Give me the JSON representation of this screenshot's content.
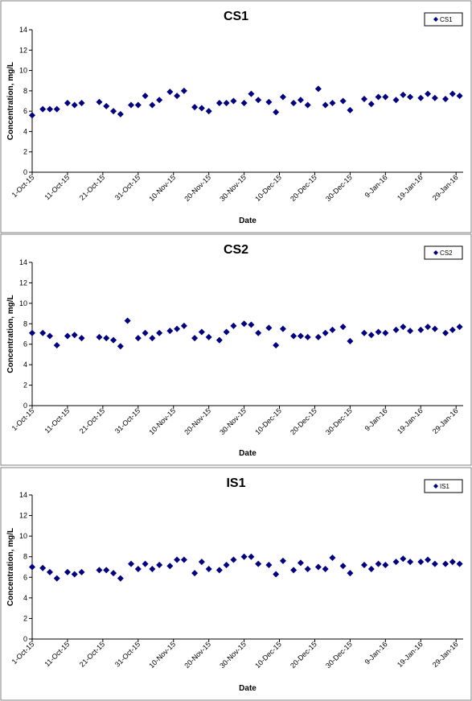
{
  "chart_data": [
    {
      "type": "scatter",
      "title": "CS1",
      "xlabel": "Date",
      "ylabel": "Concentration, mg/L",
      "ylim": [
        0,
        14
      ],
      "yticks": [
        "0",
        "2",
        "4",
        "6",
        "8",
        "10",
        "12",
        "14"
      ],
      "xlim": [
        "2015-10-01",
        "2016-01-31"
      ],
      "xticks": [
        {
          "date": "2015-10-01",
          "label": "1-Oct-15"
        },
        {
          "date": "2015-10-11",
          "label": "11-Oct-15"
        },
        {
          "date": "2015-10-21",
          "label": "21-Oct-15"
        },
        {
          "date": "2015-10-31",
          "label": "31-Oct-15"
        },
        {
          "date": "2015-11-10",
          "label": "10-Nov-15"
        },
        {
          "date": "2015-11-20",
          "label": "20-Nov-15"
        },
        {
          "date": "2015-11-30",
          "label": "30-Nov-15"
        },
        {
          "date": "2015-12-10",
          "label": "10-Dec-15"
        },
        {
          "date": "2015-12-20",
          "label": "20-Dec-15"
        },
        {
          "date": "2015-12-30",
          "label": "30-Dec-15"
        },
        {
          "date": "2016-01-09",
          "label": "9-Jan-16"
        },
        {
          "date": "2016-01-19",
          "label": "19-Jan-16"
        },
        {
          "date": "2016-01-29",
          "label": "29-Jan-16"
        }
      ],
      "grid": "none",
      "legend_position": "top-right",
      "marker_color": "#000080",
      "series": [
        {
          "name": "CS1",
          "points": [
            {
              "x": "2015-10-01",
              "y": 5.6
            },
            {
              "x": "2015-10-04",
              "y": 6.2
            },
            {
              "x": "2015-10-06",
              "y": 6.2
            },
            {
              "x": "2015-10-08",
              "y": 6.2
            },
            {
              "x": "2015-10-11",
              "y": 6.8
            },
            {
              "x": "2015-10-13",
              "y": 6.6
            },
            {
              "x": "2015-10-15",
              "y": 6.8
            },
            {
              "x": "2015-10-20",
              "y": 6.9
            },
            {
              "x": "2015-10-22",
              "y": 6.5
            },
            {
              "x": "2015-10-24",
              "y": 6.0
            },
            {
              "x": "2015-10-26",
              "y": 5.7
            },
            {
              "x": "2015-10-29",
              "y": 6.6
            },
            {
              "x": "2015-10-31",
              "y": 6.6
            },
            {
              "x": "2015-11-02",
              "y": 7.5
            },
            {
              "x": "2015-11-04",
              "y": 6.6
            },
            {
              "x": "2015-11-06",
              "y": 7.1
            },
            {
              "x": "2015-11-09",
              "y": 7.9
            },
            {
              "x": "2015-11-11",
              "y": 7.5
            },
            {
              "x": "2015-11-13",
              "y": 8.0
            },
            {
              "x": "2015-11-16",
              "y": 6.4
            },
            {
              "x": "2015-11-18",
              "y": 6.3
            },
            {
              "x": "2015-11-20",
              "y": 6.0
            },
            {
              "x": "2015-11-23",
              "y": 6.8
            },
            {
              "x": "2015-11-25",
              "y": 6.8
            },
            {
              "x": "2015-11-27",
              "y": 7.0
            },
            {
              "x": "2015-11-30",
              "y": 6.8
            },
            {
              "x": "2015-12-02",
              "y": 7.7
            },
            {
              "x": "2015-12-04",
              "y": 7.1
            },
            {
              "x": "2015-12-07",
              "y": 6.9
            },
            {
              "x": "2015-12-09",
              "y": 5.9
            },
            {
              "x": "2015-12-11",
              "y": 7.4
            },
            {
              "x": "2015-12-14",
              "y": 6.8
            },
            {
              "x": "2015-12-16",
              "y": 7.1
            },
            {
              "x": "2015-12-18",
              "y": 6.6
            },
            {
              "x": "2015-12-21",
              "y": 8.2
            },
            {
              "x": "2015-12-23",
              "y": 6.6
            },
            {
              "x": "2015-12-25",
              "y": 6.8
            },
            {
              "x": "2015-12-28",
              "y": 7.0
            },
            {
              "x": "2015-12-30",
              "y": 6.1
            },
            {
              "x": "2016-01-03",
              "y": 7.2
            },
            {
              "x": "2016-01-05",
              "y": 6.7
            },
            {
              "x": "2016-01-07",
              "y": 7.4
            },
            {
              "x": "2016-01-09",
              "y": 7.4
            },
            {
              "x": "2016-01-12",
              "y": 7.1
            },
            {
              "x": "2016-01-14",
              "y": 7.6
            },
            {
              "x": "2016-01-16",
              "y": 7.4
            },
            {
              "x": "2016-01-19",
              "y": 7.3
            },
            {
              "x": "2016-01-21",
              "y": 7.7
            },
            {
              "x": "2016-01-23",
              "y": 7.3
            },
            {
              "x": "2016-01-26",
              "y": 7.2
            },
            {
              "x": "2016-01-28",
              "y": 7.7
            },
            {
              "x": "2016-01-30",
              "y": 7.5
            }
          ]
        }
      ]
    },
    {
      "type": "scatter",
      "title": "CS2",
      "xlabel": "Date",
      "ylabel": "Concentration, mg/L",
      "ylim": [
        0,
        14
      ],
      "yticks": [
        "0",
        "2",
        "4",
        "6",
        "8",
        "10",
        "12",
        "14"
      ],
      "xlim": [
        "2015-10-01",
        "2016-01-31"
      ],
      "xticks": [
        {
          "date": "2015-10-01",
          "label": "1-Oct-15"
        },
        {
          "date": "2015-10-11",
          "label": "11-Oct-15"
        },
        {
          "date": "2015-10-21",
          "label": "21-Oct-15"
        },
        {
          "date": "2015-10-31",
          "label": "31-Oct-15"
        },
        {
          "date": "2015-11-10",
          "label": "10-Nov-15"
        },
        {
          "date": "2015-11-20",
          "label": "20-Nov-15"
        },
        {
          "date": "2015-11-30",
          "label": "30-Nov-15"
        },
        {
          "date": "2015-12-10",
          "label": "10-Dec-15"
        },
        {
          "date": "2015-12-20",
          "label": "20-Dec-15"
        },
        {
          "date": "2015-12-30",
          "label": "30-Dec-15"
        },
        {
          "date": "2016-01-09",
          "label": "9-Jan-16"
        },
        {
          "date": "2016-01-19",
          "label": "19-Jan-16"
        },
        {
          "date": "2016-01-29",
          "label": "29-Jan-16"
        }
      ],
      "grid": "none",
      "legend_position": "top-right",
      "marker_color": "#000080",
      "series": [
        {
          "name": "CS2",
          "points": [
            {
              "x": "2015-10-01",
              "y": 7.1
            },
            {
              "x": "2015-10-04",
              "y": 7.1
            },
            {
              "x": "2015-10-06",
              "y": 6.8
            },
            {
              "x": "2015-10-08",
              "y": 5.9
            },
            {
              "x": "2015-10-11",
              "y": 6.8
            },
            {
              "x": "2015-10-13",
              "y": 6.9
            },
            {
              "x": "2015-10-15",
              "y": 6.6
            },
            {
              "x": "2015-10-20",
              "y": 6.7
            },
            {
              "x": "2015-10-22",
              "y": 6.6
            },
            {
              "x": "2015-10-24",
              "y": 6.4
            },
            {
              "x": "2015-10-26",
              "y": 5.8
            },
            {
              "x": "2015-10-28",
              "y": 8.3
            },
            {
              "x": "2015-10-31",
              "y": 6.6
            },
            {
              "x": "2015-11-02",
              "y": 7.1
            },
            {
              "x": "2015-11-04",
              "y": 6.6
            },
            {
              "x": "2015-11-06",
              "y": 7.1
            },
            {
              "x": "2015-11-09",
              "y": 7.3
            },
            {
              "x": "2015-11-11",
              "y": 7.5
            },
            {
              "x": "2015-11-13",
              "y": 7.8
            },
            {
              "x": "2015-11-16",
              "y": 6.6
            },
            {
              "x": "2015-11-18",
              "y": 7.2
            },
            {
              "x": "2015-11-20",
              "y": 6.7
            },
            {
              "x": "2015-11-23",
              "y": 6.4
            },
            {
              "x": "2015-11-25",
              "y": 7.2
            },
            {
              "x": "2015-11-27",
              "y": 7.8
            },
            {
              "x": "2015-11-30",
              "y": 8.0
            },
            {
              "x": "2015-12-02",
              "y": 7.9
            },
            {
              "x": "2015-12-04",
              "y": 7.1
            },
            {
              "x": "2015-12-07",
              "y": 7.6
            },
            {
              "x": "2015-12-09",
              "y": 5.9
            },
            {
              "x": "2015-12-11",
              "y": 7.5
            },
            {
              "x": "2015-12-14",
              "y": 6.8
            },
            {
              "x": "2015-12-16",
              "y": 6.8
            },
            {
              "x": "2015-12-18",
              "y": 6.7
            },
            {
              "x": "2015-12-21",
              "y": 6.7
            },
            {
              "x": "2015-12-23",
              "y": 7.1
            },
            {
              "x": "2015-12-25",
              "y": 7.4
            },
            {
              "x": "2015-12-28",
              "y": 7.7
            },
            {
              "x": "2015-12-30",
              "y": 6.3
            },
            {
              "x": "2016-01-03",
              "y": 7.1
            },
            {
              "x": "2016-01-05",
              "y": 6.9
            },
            {
              "x": "2016-01-07",
              "y": 7.2
            },
            {
              "x": "2016-01-09",
              "y": 7.1
            },
            {
              "x": "2016-01-12",
              "y": 7.4
            },
            {
              "x": "2016-01-14",
              "y": 7.7
            },
            {
              "x": "2016-01-16",
              "y": 7.3
            },
            {
              "x": "2016-01-19",
              "y": 7.4
            },
            {
              "x": "2016-01-21",
              "y": 7.7
            },
            {
              "x": "2016-01-23",
              "y": 7.5
            },
            {
              "x": "2016-01-26",
              "y": 7.1
            },
            {
              "x": "2016-01-28",
              "y": 7.4
            },
            {
              "x": "2016-01-30",
              "y": 7.7
            }
          ]
        }
      ]
    },
    {
      "type": "scatter",
      "title": "IS1",
      "xlabel": "Date",
      "ylabel": "Concentration, mg/L",
      "ylim": [
        0,
        14
      ],
      "yticks": [
        "0",
        "2",
        "4",
        "6",
        "8",
        "10",
        "12",
        "14"
      ],
      "xlim": [
        "2015-10-01",
        "2016-01-31"
      ],
      "xticks": [
        {
          "date": "2015-10-01",
          "label": "1-Oct-15"
        },
        {
          "date": "2015-10-11",
          "label": "11-Oct-15"
        },
        {
          "date": "2015-10-21",
          "label": "21-Oct-15"
        },
        {
          "date": "2015-10-31",
          "label": "31-Oct-15"
        },
        {
          "date": "2015-11-10",
          "label": "10-Nov-15"
        },
        {
          "date": "2015-11-20",
          "label": "20-Nov-15"
        },
        {
          "date": "2015-11-30",
          "label": "30-Nov-15"
        },
        {
          "date": "2015-12-10",
          "label": "10-Dec-15"
        },
        {
          "date": "2015-12-20",
          "label": "20-Dec-15"
        },
        {
          "date": "2015-12-30",
          "label": "30-Dec-15"
        },
        {
          "date": "2016-01-09",
          "label": "9-Jan-16"
        },
        {
          "date": "2016-01-19",
          "label": "19-Jan-16"
        },
        {
          "date": "2016-01-29",
          "label": "29-Jan-16"
        }
      ],
      "grid": "none",
      "legend_position": "top-right",
      "marker_color": "#000080",
      "series": [
        {
          "name": "IS1",
          "points": [
            {
              "x": "2015-10-01",
              "y": 7.0
            },
            {
              "x": "2015-10-04",
              "y": 6.9
            },
            {
              "x": "2015-10-06",
              "y": 6.5
            },
            {
              "x": "2015-10-08",
              "y": 5.9
            },
            {
              "x": "2015-10-11",
              "y": 6.5
            },
            {
              "x": "2015-10-13",
              "y": 6.3
            },
            {
              "x": "2015-10-15",
              "y": 6.5
            },
            {
              "x": "2015-10-20",
              "y": 6.7
            },
            {
              "x": "2015-10-22",
              "y": 6.7
            },
            {
              "x": "2015-10-24",
              "y": 6.4
            },
            {
              "x": "2015-10-26",
              "y": 5.9
            },
            {
              "x": "2015-10-29",
              "y": 7.3
            },
            {
              "x": "2015-10-31",
              "y": 6.8
            },
            {
              "x": "2015-11-02",
              "y": 7.3
            },
            {
              "x": "2015-11-04",
              "y": 6.8
            },
            {
              "x": "2015-11-06",
              "y": 7.2
            },
            {
              "x": "2015-11-09",
              "y": 7.1
            },
            {
              "x": "2015-11-11",
              "y": 7.7
            },
            {
              "x": "2015-11-13",
              "y": 7.7
            },
            {
              "x": "2015-11-16",
              "y": 6.4
            },
            {
              "x": "2015-11-18",
              "y": 7.5
            },
            {
              "x": "2015-11-20",
              "y": 6.8
            },
            {
              "x": "2015-11-23",
              "y": 6.7
            },
            {
              "x": "2015-11-25",
              "y": 7.2
            },
            {
              "x": "2015-11-27",
              "y": 7.7
            },
            {
              "x": "2015-11-30",
              "y": 8.0
            },
            {
              "x": "2015-12-02",
              "y": 8.0
            },
            {
              "x": "2015-12-04",
              "y": 7.3
            },
            {
              "x": "2015-12-07",
              "y": 7.2
            },
            {
              "x": "2015-12-09",
              "y": 6.3
            },
            {
              "x": "2015-12-11",
              "y": 7.6
            },
            {
              "x": "2015-12-14",
              "y": 6.7
            },
            {
              "x": "2015-12-16",
              "y": 7.4
            },
            {
              "x": "2015-12-18",
              "y": 6.8
            },
            {
              "x": "2015-12-21",
              "y": 7.0
            },
            {
              "x": "2015-12-23",
              "y": 6.8
            },
            {
              "x": "2015-12-25",
              "y": 7.9
            },
            {
              "x": "2015-12-28",
              "y": 7.1
            },
            {
              "x": "2015-12-30",
              "y": 6.4
            },
            {
              "x": "2016-01-03",
              "y": 7.2
            },
            {
              "x": "2016-01-05",
              "y": 6.8
            },
            {
              "x": "2016-01-07",
              "y": 7.3
            },
            {
              "x": "2016-01-09",
              "y": 7.2
            },
            {
              "x": "2016-01-12",
              "y": 7.5
            },
            {
              "x": "2016-01-14",
              "y": 7.8
            },
            {
              "x": "2016-01-16",
              "y": 7.5
            },
            {
              "x": "2016-01-19",
              "y": 7.5
            },
            {
              "x": "2016-01-21",
              "y": 7.7
            },
            {
              "x": "2016-01-23",
              "y": 7.3
            },
            {
              "x": "2016-01-26",
              "y": 7.3
            },
            {
              "x": "2016-01-28",
              "y": 7.5
            },
            {
              "x": "2016-01-30",
              "y": 7.3
            }
          ]
        }
      ]
    }
  ]
}
